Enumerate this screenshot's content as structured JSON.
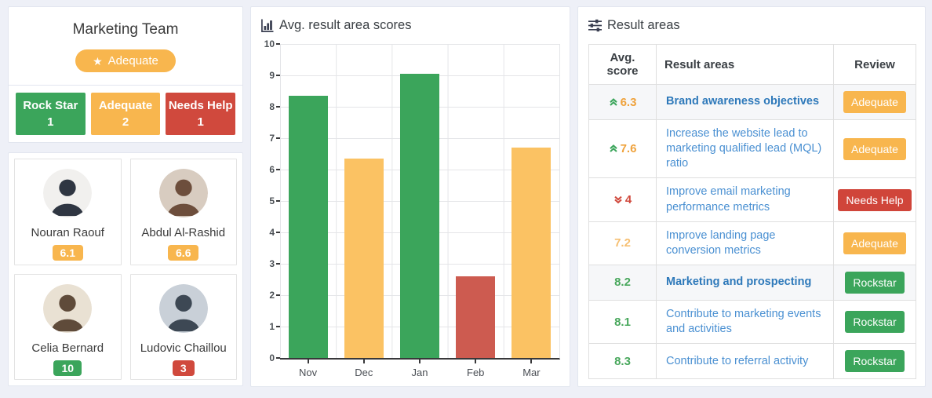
{
  "page": {
    "background": "#eef0f7"
  },
  "team_panel": {
    "title": "Marketing Team",
    "overall_badge": {
      "label": "Adequate",
      "icon": "star-icon",
      "color": "#f8b64e"
    },
    "status_boxes": [
      {
        "label": "Rock Star",
        "count": "1",
        "color": "#3ba55b"
      },
      {
        "label": "Adequate",
        "count": "2",
        "color": "#f8b64e"
      },
      {
        "label": "Needs Help",
        "count": "1",
        "color": "#d0493d"
      }
    ],
    "members": [
      {
        "name": "Nouran Raouf",
        "score": "6.1",
        "score_color": "#f8b64e",
        "avatar_bg": "#f1f0ee",
        "avatar_fg": "#2f3642"
      },
      {
        "name": "Abdul Al-Rashid",
        "score": "6.6",
        "score_color": "#f8b64e",
        "avatar_bg": "#d8ccc0",
        "avatar_fg": "#6d4e3c"
      },
      {
        "name": "Celia Bernard",
        "score": "10",
        "score_color": "#3ba55b",
        "avatar_bg": "#e9e1d3",
        "avatar_fg": "#5f4b3a"
      },
      {
        "name": "Ludovic Chaillou",
        "score": "3",
        "score_color": "#d0493d",
        "avatar_bg": "#c9d0d8",
        "avatar_fg": "#3d4854"
      }
    ]
  },
  "chart_panel": {
    "title": "Avg. result area scores",
    "icon": "bar-chart-icon"
  },
  "chart_data": {
    "type": "bar",
    "title": "Avg. result area scores",
    "categories": [
      "Nov",
      "Dec",
      "Jan",
      "Feb",
      "Mar"
    ],
    "values": [
      8.35,
      6.35,
      9.05,
      2.6,
      6.7
    ],
    "bar_colors": [
      "#3ba55b",
      "#fbc263",
      "#3ba55b",
      "#cd5b50",
      "#fbc263"
    ],
    "xlabel": "",
    "ylabel": "",
    "ylim": [
      0,
      10
    ],
    "ytick_step": 1,
    "grid": true,
    "legend": false
  },
  "result_panel": {
    "title": "Result areas",
    "icon": "sliders-icon",
    "columns": [
      "Avg. score",
      "Result areas",
      "Review"
    ],
    "trend_colors": {
      "up": "#3ba55b",
      "down": "#d0493d"
    },
    "rows": [
      {
        "trend": "up",
        "score": "6.3",
        "score_color": "#efa23c",
        "area": "Brand awareness objectives",
        "bold": true,
        "highlight": true,
        "review": "Adequate",
        "review_color": "#f8b64e"
      },
      {
        "trend": "up",
        "score": "7.6",
        "score_color": "#efa23c",
        "area": "Increase the website lead to marketing qualified lead (MQL) ratio",
        "bold": false,
        "highlight": false,
        "review": "Adequate",
        "review_color": "#f8b64e"
      },
      {
        "trend": "down",
        "score": "4",
        "score_color": "#d0493d",
        "area": "Improve email marketing performance metrics",
        "bold": false,
        "highlight": false,
        "review": "Needs Help",
        "review_color": "#d0453a"
      },
      {
        "trend": null,
        "score": "7.2",
        "score_color": "#f6bf72",
        "area": "Improve landing page conversion metrics",
        "bold": false,
        "highlight": false,
        "review": "Adequate",
        "review_color": "#f8b64e"
      },
      {
        "trend": null,
        "score": "8.2",
        "score_color": "#49a85d",
        "area": "Marketing and prospecting",
        "bold": true,
        "highlight": true,
        "review": "Rockstar",
        "review_color": "#3ba55b"
      },
      {
        "trend": null,
        "score": "8.1",
        "score_color": "#49a85d",
        "area": "Contribute to marketing events and activities",
        "bold": false,
        "highlight": false,
        "review": "Rockstar",
        "review_color": "#3ba55b"
      },
      {
        "trend": null,
        "score": "8.3",
        "score_color": "#49a85d",
        "area": "Contribute to referral activity",
        "bold": false,
        "highlight": false,
        "review": "Rockstar",
        "review_color": "#3ba55b"
      }
    ],
    "link_colors": {
      "regular": "#4a90d2",
      "bold": "#2e79ba"
    }
  }
}
